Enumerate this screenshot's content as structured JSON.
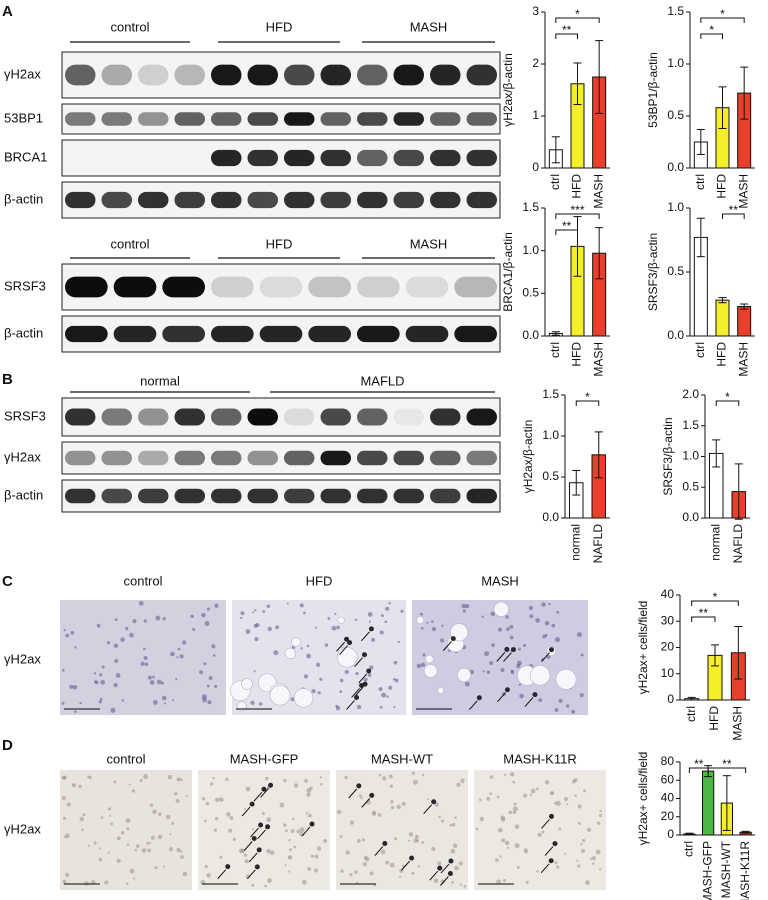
{
  "panels": [
    "A",
    "B",
    "C",
    "D"
  ],
  "blots": [
    {
      "groups": [
        "control",
        "HFD",
        "MASH"
      ],
      "rows": [
        "γH2ax",
        "53BP1",
        "BRCA1",
        "β-actin"
      ]
    },
    {
      "groups": [
        "control",
        "HFD",
        "MASH"
      ],
      "rows": [
        "SRSF3",
        "β-actin"
      ]
    },
    {
      "groups": [
        "normal",
        "MAFLD"
      ],
      "rows": [
        "SRSF3",
        "γH2ax",
        "β-actin"
      ]
    }
  ],
  "micrographs": [
    {
      "titles": [
        "control",
        "HFD",
        "MASH"
      ],
      "row": "γH2ax"
    },
    {
      "titles": [
        "control",
        "MASH-GFP",
        "MASH-WT",
        "MASH-K11R"
      ],
      "row": "γH2ax"
    }
  ],
  "chart_data": [
    {
      "type": "bar",
      "y_label": "γH2ax/β-actin",
      "categories": [
        "ctrl",
        "HFD",
        "MASH"
      ],
      "values": [
        0.35,
        1.62,
        1.75
      ],
      "errors": [
        0.25,
        0.4,
        0.7
      ],
      "colors": [
        "#ffffff",
        "#f5ee2a",
        "#e8402a"
      ],
      "ylim": [
        0,
        3
      ],
      "yticks": [
        0,
        1,
        2,
        3
      ],
      "annotations": [
        "*",
        "**"
      ]
    },
    {
      "type": "bar",
      "y_label": "53BP1/β-actin",
      "categories": [
        "ctrl",
        "HFD",
        "MASH"
      ],
      "values": [
        0.25,
        0.58,
        0.72
      ],
      "errors": [
        0.12,
        0.2,
        0.25
      ],
      "colors": [
        "#ffffff",
        "#f5ee2a",
        "#e8402a"
      ],
      "ylim": [
        0,
        1.5
      ],
      "yticks": [
        {
          "value": 0,
          "label": "0.0"
        },
        0.5,
        {
          "value": 1,
          "label": "1.0"
        },
        1.5
      ],
      "annotations": [
        "*",
        "*"
      ]
    },
    {
      "type": "bar",
      "y_label": "BRCA1/β-actin",
      "categories": [
        "ctrl",
        "HFD",
        "MASH"
      ],
      "values": [
        0.03,
        1.05,
        0.97
      ],
      "errors": [
        0.02,
        0.35,
        0.3
      ],
      "colors": [
        "#ffffff",
        "#f5ee2a",
        "#e8402a"
      ],
      "ylim": [
        0,
        1.5
      ],
      "yticks": [
        {
          "value": 0,
          "label": "0.0"
        },
        0.5,
        {
          "value": 1,
          "label": "1.0"
        },
        1.5
      ],
      "annotations": [
        "***",
        "**"
      ]
    },
    {
      "type": "bar",
      "y_label": "SRSF3/β-actin",
      "categories": [
        "ctrl",
        "HFD",
        "MASH"
      ],
      "values": [
        0.77,
        0.28,
        0.23
      ],
      "errors": [
        0.15,
        0.02,
        0.02
      ],
      "colors": [
        "#ffffff",
        "#f5ee2a",
        "#e8402a"
      ],
      "ylim": [
        0,
        1
      ],
      "yticks": [
        {
          "value": 0,
          "label": "0.0"
        },
        0.5,
        {
          "value": 1,
          "label": "1.0"
        }
      ],
      "annotations": [
        "**"
      ]
    },
    {
      "type": "bar",
      "y_label": "γH2ax/β-actin",
      "categories": [
        "normal",
        "NAFLD"
      ],
      "values": [
        0.43,
        0.77
      ],
      "errors": [
        0.15,
        0.28
      ],
      "colors": [
        "#ffffff",
        "#e8402a"
      ],
      "ylim": [
        0,
        1.5
      ],
      "yticks": [
        {
          "value": 0,
          "label": "0.0"
        },
        0.5,
        {
          "value": 1,
          "label": "1.0"
        },
        1.5
      ],
      "annotations": [
        "*"
      ]
    },
    {
      "type": "bar",
      "y_label": "SRSF3/β-actin",
      "categories": [
        "normal",
        "NAFLD"
      ],
      "values": [
        1.05,
        0.43
      ],
      "errors": [
        0.22,
        0.45
      ],
      "colors": [
        "#ffffff",
        "#e8402a"
      ],
      "ylim": [
        0,
        2
      ],
      "yticks": [
        {
          "value": 0,
          "label": "0.0"
        },
        0.5,
        {
          "value": 1,
          "label": "1.0"
        },
        1.5,
        {
          "value": 2,
          "label": "2.0"
        }
      ],
      "annotations": [
        "*"
      ]
    },
    {
      "type": "bar",
      "y_label": "γH2ax+ cells/field",
      "categories": [
        "ctrl",
        "HFD",
        "MASH"
      ],
      "values": [
        0.5,
        17,
        18
      ],
      "errors": [
        0.5,
        4,
        10
      ],
      "colors": [
        "#ffffff",
        "#f5ee2a",
        "#e8402a"
      ],
      "ylim": [
        0,
        40
      ],
      "yticks": [
        0,
        10,
        20,
        30,
        40
      ],
      "annotations": [
        "*",
        "**"
      ]
    },
    {
      "type": "bar",
      "y_label": "γH2ax+ cells/field",
      "categories": [
        "ctrl",
        "MASH-GFP",
        "MASH-WT",
        "MASH-K11R"
      ],
      "values": [
        1,
        70,
        35,
        3
      ],
      "errors": [
        1,
        6,
        30,
        1
      ],
      "colors": [
        "#ffffff",
        "#4cb843",
        "#f5ee2a",
        "#e8402a"
      ],
      "ylim": [
        0,
        80
      ],
      "yticks": [
        0,
        20,
        40,
        60,
        80
      ],
      "annotations": [
        "**",
        "**"
      ]
    }
  ]
}
